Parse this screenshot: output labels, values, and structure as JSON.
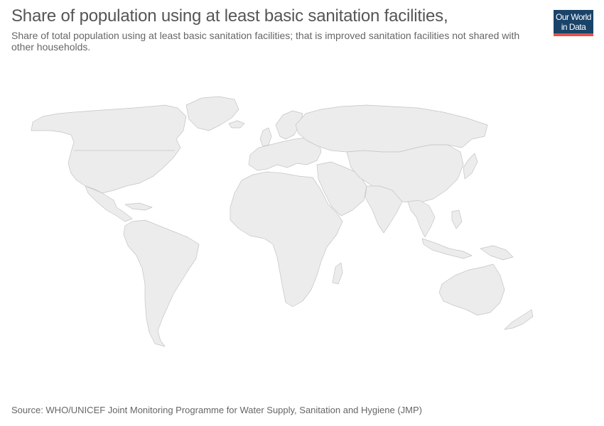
{
  "header": {
    "title": "Share of population using at least basic sanitation facilities,",
    "subtitle": "Share of total population using at least basic sanitation facilities; that is improved sanitation facilities not shared with other households."
  },
  "logo": {
    "line1": "Our World",
    "line2": "in Data"
  },
  "map": {
    "regions": [
      "north-america",
      "greenland",
      "central-america",
      "caribbean",
      "south-america",
      "europe",
      "iceland",
      "uk",
      "scandinavia",
      "africa",
      "madagascar",
      "middle-east",
      "russia",
      "asia",
      "india",
      "southeast-asia",
      "indonesia",
      "japan",
      "philippines",
      "new-guinea",
      "australia",
      "new-zealand"
    ]
  },
  "footer": {
    "source": "Source: WHO/UNICEF Joint Monitoring Programme for Water Supply, Sanitation and Hygiene (JMP)"
  },
  "colors": {
    "land": "#ececec",
    "border": "#c4c4c4",
    "logo_bg": "#1a4369",
    "logo_accent": "#e0534c"
  }
}
